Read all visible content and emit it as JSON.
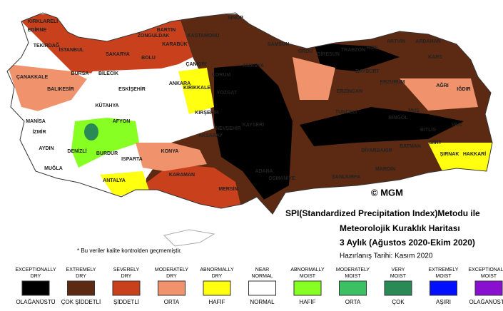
{
  "map": {
    "copyright": "© MGM",
    "title_lines": [
      "SPI(Standardized Precipitation Index)Metodu ile",
      "Meteorolojik Kuraklık Haritası",
      "3 Aylık (Ağustos 2020-Ekim 2020)"
    ],
    "prepared": "Hazırlanış Tarihi: Kasım 2020",
    "note": "* Bu veriler kalite kontrolden geçmemiştir.",
    "cities": [
      "SİNOP",
      "KIRKLARELİ",
      "EDİRNE",
      "TEKİRDAĞ",
      "İSTANBUL",
      "BARTIN",
      "KASTAMONU",
      "ZONGULDAK",
      "KARABÜK",
      "SAKARYA",
      "BOLU",
      "ÇANKIRI",
      "ÇANAKKALE",
      "BALIKESİR",
      "BURSA",
      "BİLECİK",
      "ESKİŞEHİR",
      "ANKARA",
      "KIRIKKALE",
      "KÜTAHYA",
      "AFYON",
      "MANİSA",
      "İZMİR",
      "AYDIN",
      "DENİZLİ",
      "MUĞLA",
      "BURDUR",
      "ISPARTA",
      "ANTALYA",
      "KONYA",
      "KARAMAN",
      "AKSARAY",
      "KIRŞEHİR",
      "NEVŞEHİR",
      "KAYSERİ",
      "YOZGAT",
      "ÇORUM",
      "AMASYA",
      "SAMSUN",
      "ORDU",
      "GİRESUN",
      "TRABZON",
      "RİZE",
      "ARTVİN",
      "ARDAHAN",
      "KARS",
      "BAYBURT",
      "ERZURUM",
      "AĞRI",
      "IĞDIR",
      "ERZİNCAN",
      "TUNCELİ",
      "BİNGÖL",
      "MUŞ",
      "VAN",
      "BİTLİS",
      "SİİRT",
      "ŞIRNAK",
      "HAKKARİ",
      "BATMAN",
      "DİYARBAKIR",
      "MARDİN",
      "ŞANLIURFA",
      "ADANA",
      "MERSİN",
      "OSMANİYE"
    ]
  },
  "legend": [
    {
      "en": [
        "EXCEPTIONALLY",
        "DRY"
      ],
      "tr": "OLAĞANÜSTÜ",
      "color": "#000000"
    },
    {
      "en": [
        "EXTREMELY",
        "DRY"
      ],
      "tr": "ÇOK ŞİDDETLİ",
      "color": "#5c2a12"
    },
    {
      "en": [
        "SEVERELY",
        "DRY"
      ],
      "tr": "ŞİDDETLİ",
      "color": "#c8401c"
    },
    {
      "en": [
        "MODERATELY",
        "DRY"
      ],
      "tr": "ORTA",
      "color": "#f0926c"
    },
    {
      "en": [
        "ABNORMALLY",
        "DRY"
      ],
      "tr": "HAFİF",
      "color": "#ffff10"
    },
    {
      "en": [
        "NEAR",
        "NORMAL"
      ],
      "tr": "NORMAL",
      "color": "#ffffff"
    },
    {
      "en": [
        "ABNORMALLY",
        "MOIST"
      ],
      "tr": "HAFİF",
      "color": "#88ff22"
    },
    {
      "en": [
        "MODERATELY",
        "MOIST"
      ],
      "tr": "ORTA",
      "color": "#3cc064"
    },
    {
      "en": [
        "VERY",
        "MOIST"
      ],
      "tr": "ÇOK",
      "color": "#2a8a55"
    },
    {
      "en": [
        "EXTREMELY",
        "MOIST"
      ],
      "tr": "AŞIRI",
      "color": "#0010ff"
    },
    {
      "en": [
        "EXCEPTIONALLY",
        "MOIST"
      ],
      "tr": "OLAĞANÜSTÜ",
      "color": "#8a10d0"
    }
  ]
}
